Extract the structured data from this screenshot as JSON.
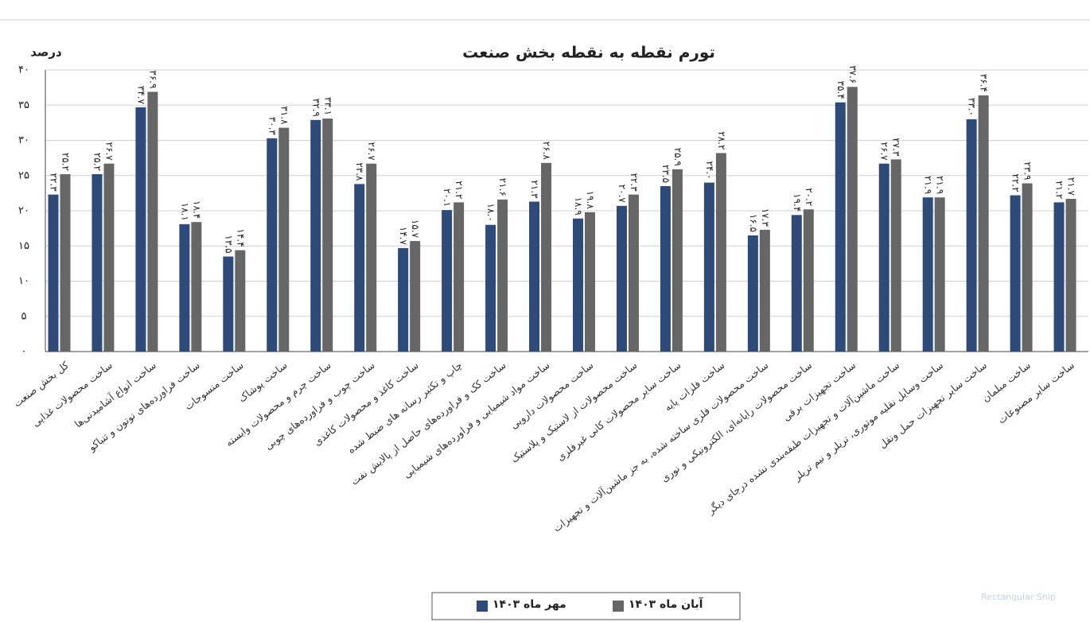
{
  "chart_data": {
    "type": "bar",
    "title": "تورم نقطه به نقطه بخش صنعت",
    "y_label": "درصد",
    "categories": [
      "کل بخش صنعت",
      "ساخت محصولات غذایی",
      "ساخت انواع آشامیدنی‌ها",
      "ساخت فراورده‌های توتون و تنباکو",
      "ساخت منسوجات",
      "ساخت پوشاک",
      "ساخت چرم و محصولات وابسته",
      "ساخت چوب و فراورده‌های چوبی",
      "ساخت کاغذ و محصولات کاغذی",
      "چاپ و تکثیر رسانه های ضبط شده",
      "ساخت کک و فراورده‌های حاصل از پالایش نفت",
      "ساخت مواد شیمیایی و فراورده‌های شیمیایی",
      "ساخت محصولات دارویی",
      "ساخت محصولات از لاستیک و پلاستیک",
      "ساخت سایر محصولات کانی غیرفلزی",
      "ساخت فلزات پایه",
      "ساخت محصولات فلزی ساخته شده، به جز ماشین‌آلات و تجهیزات",
      "ساخت محصولات رایانه‌ای، الکترونیکی و نوری",
      "ساخت تجهیزات برقی",
      "ساخت ماشین‌آلات و تجهیزات طبقه‌بندی نشده درجای دیگر",
      "ساخت وسایل نقلیه موتوری، تریلر و نیم تریلر",
      "ساخت سایر تجهیزات حمل ونقل",
      "ساخت مبلمان",
      "ساخت سایر مصنوعات"
    ],
    "series": [
      {
        "name": "مهر ماه ۱۴۰۳",
        "color": "#2e4a78",
        "values": [
          22.3,
          25.2,
          34.7,
          18.1,
          13.5,
          30.3,
          32.9,
          23.8,
          14.7,
          20.1,
          18.0,
          21.3,
          18.9,
          20.7,
          23.5,
          24.0,
          16.5,
          19.4,
          35.4,
          26.7,
          21.9,
          33.0,
          22.2,
          21.2
        ],
        "value_labels": [
          "۲۲.۳",
          "۲۵.۲",
          "۳۴.۷",
          "۱۸.۱",
          "۱۳.۵",
          "۳۰.۳",
          "۳۲.۹",
          "۲۳.۸",
          "۱۴.۷",
          "۲۰.۱",
          "۱۸.۰",
          "۲۱.۳",
          "۱۸.۹",
          "۲۰.۷",
          "۲۳.۵",
          "۲۴.۰",
          "۱۶.۵",
          "۱۹.۴",
          "۳۵.۴",
          "۲۶.۷",
          "۲۱.۹",
          "۳۳.۰",
          "۲۲.۲",
          "۲۱.۲"
        ]
      },
      {
        "name": "آبان ماه ۱۴۰۳",
        "color": "#666666",
        "values": [
          25.2,
          26.7,
          36.9,
          18.4,
          14.4,
          31.8,
          33.1,
          26.7,
          15.7,
          21.2,
          21.6,
          26.8,
          19.8,
          22.3,
          25.9,
          28.2,
          17.3,
          20.2,
          37.6,
          27.3,
          21.9,
          36.4,
          23.9,
          21.7
        ],
        "value_labels": [
          "۲۵.۲",
          "۲۶.۷",
          "۳۶.۹",
          "۱۸.۴",
          "۱۴.۴",
          "۳۱.۸",
          "۳۳.۱",
          "۲۶.۷",
          "۱۵.۷",
          "۲۱.۲",
          "۲۱.۶",
          "۲۶.۸",
          "۱۹.۸",
          "۲۲.۳",
          "۲۵.۹",
          "۲۸.۲",
          "۱۷.۳",
          "۲۰.۲",
          "۳۷.۶",
          "۲۷.۳",
          "۲۱.۹",
          "۳۶.۴",
          "۲۳.۹",
          "۲۱.۷"
        ]
      }
    ],
    "ylim": [
      0,
      40
    ],
    "yticks": [
      {
        "value": 0,
        "label": "۰"
      },
      {
        "value": 5,
        "label": "۵"
      },
      {
        "value": 10,
        "label": "۱۰"
      },
      {
        "value": 15,
        "label": "۱۵"
      },
      {
        "value": 20,
        "label": "۲۰"
      },
      {
        "value": 25,
        "label": "۲۵"
      },
      {
        "value": 30,
        "label": "۳۰"
      },
      {
        "value": 35,
        "label": "۳۵"
      },
      {
        "value": 40,
        "label": "۴۰"
      }
    ],
    "grid": true,
    "legend": "bottom",
    "overlay_text": "Rectangular Snip"
  }
}
